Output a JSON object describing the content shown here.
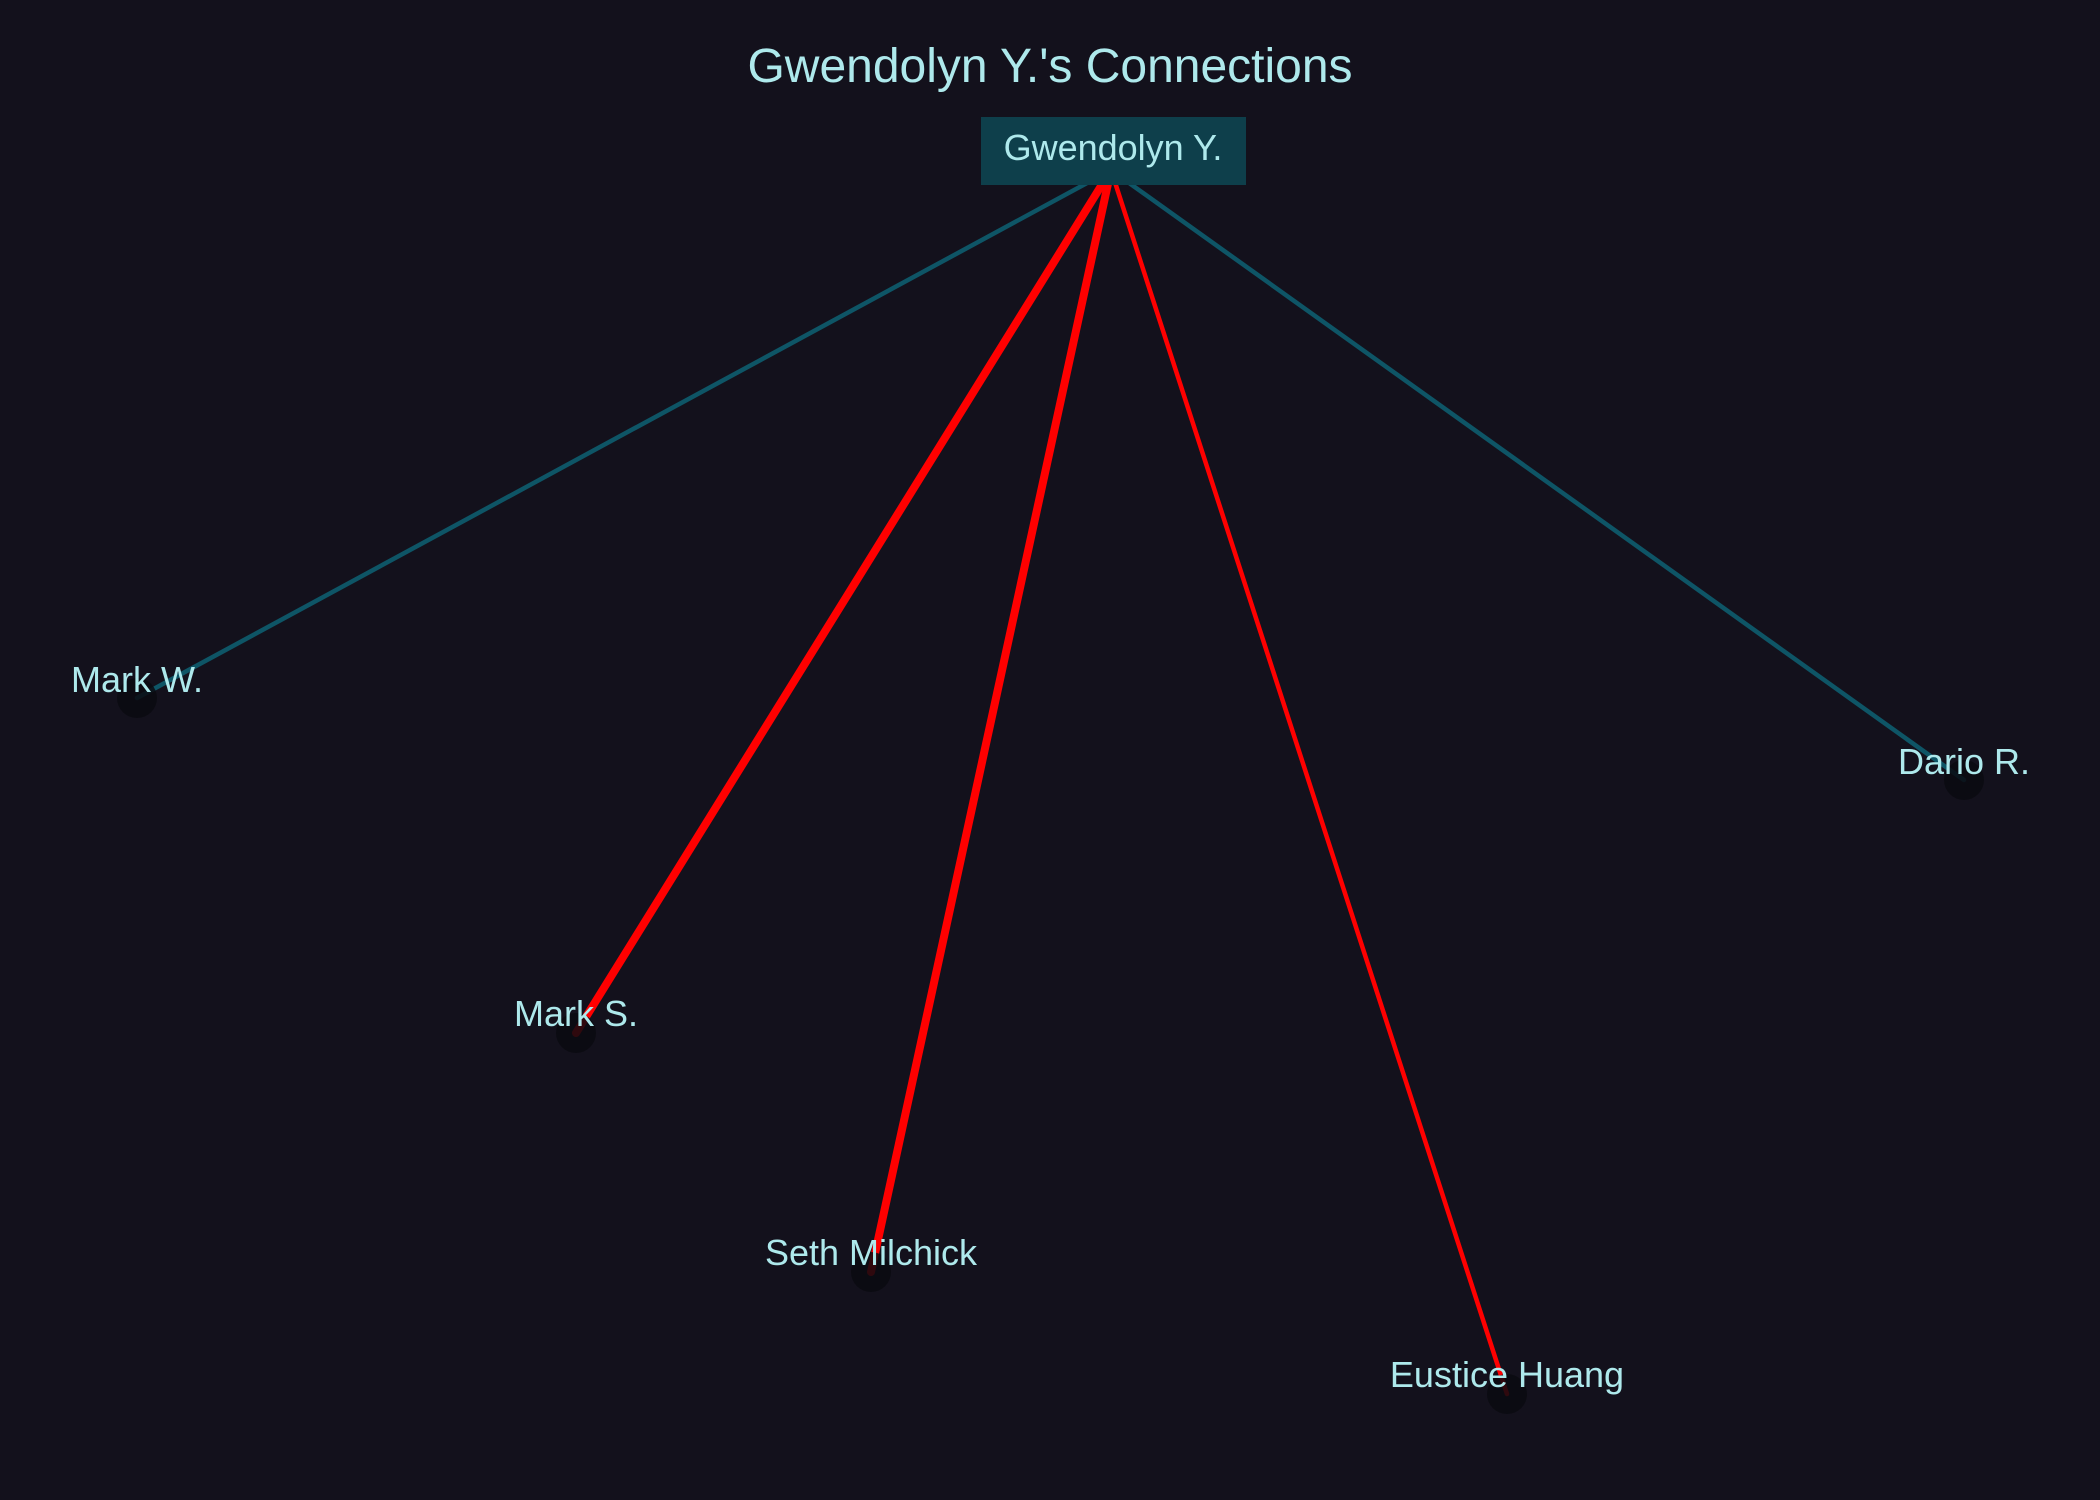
{
  "title": "Gwendolyn Y.'s Connections",
  "center": {
    "id": "gwendolyn",
    "label": "Gwendolyn Y.",
    "box_color": "#0e3f4b",
    "text_color": "#aee9ec"
  },
  "colors": {
    "background": "#13111c",
    "text": "#aee9ec",
    "edge_neutral": "#0e5566",
    "edge_strong": "#ff0000",
    "node_fill": "#0b0a10"
  },
  "nodes": [
    {
      "id": "mark-w",
      "label": "Mark W."
    },
    {
      "id": "mark-s",
      "label": "Mark S."
    },
    {
      "id": "seth-milchick",
      "label": "Seth Milchick"
    },
    {
      "id": "eustice-huang",
      "label": "Eustice Huang"
    },
    {
      "id": "dario-r",
      "label": "Dario R."
    }
  ],
  "edges": [
    {
      "from": "gwendolyn",
      "to": "mark-w",
      "color": "#0e5566",
      "strength": 1
    },
    {
      "from": "gwendolyn",
      "to": "mark-s",
      "color": "#ff0000",
      "strength": 3
    },
    {
      "from": "gwendolyn",
      "to": "seth-milchick",
      "color": "#ff0000",
      "strength": 3
    },
    {
      "from": "gwendolyn",
      "to": "eustice-huang",
      "color": "#ff0000",
      "strength": 1
    },
    {
      "from": "gwendolyn",
      "to": "dario-r",
      "color": "#0e5566",
      "strength": 1
    }
  ]
}
